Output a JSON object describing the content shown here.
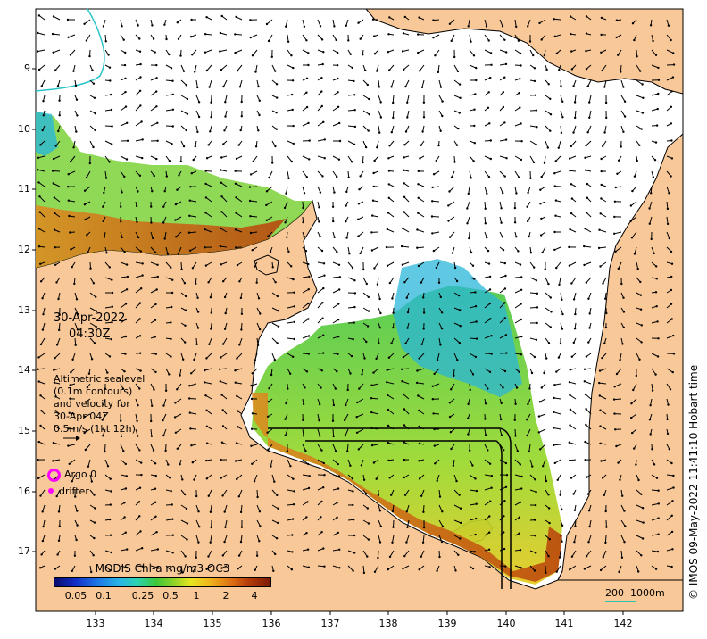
{
  "map": {
    "date": "30-Apr-2022",
    "time": "04:30Z",
    "x_ticks": [
      "133",
      "134",
      "135",
      "136",
      "137",
      "138",
      "139",
      "140",
      "141",
      "142"
    ],
    "y_ticks": [
      "9",
      "10",
      "11",
      "12",
      "13",
      "14",
      "15",
      "16",
      "17"
    ],
    "copyright": "© IMOS 09-May-2022 11:41:10 Hobart time"
  },
  "legend": {
    "altimetry_lines": [
      "Altimetric sealevel",
      "(0.1m contours)",
      "and velocity for",
      "30-Apr 04Z",
      "0.5m/s (1kt 12h)"
    ],
    "argo_label": "Argo 0",
    "drifter_label": "drifter"
  },
  "colorbar": {
    "title": "MODIS Chl-a mg/m3 OC3",
    "ticks": [
      "0.05",
      "0.1",
      "0.25",
      "0.5",
      "1",
      "2",
      "4"
    ]
  },
  "scale": {
    "left_label": "200",
    "right_label": "1000m"
  },
  "colors": {
    "land": "#f9c898",
    "ocean": "#ffffff",
    "argo": "#ff00ff",
    "contour": "#2ac4c8"
  }
}
